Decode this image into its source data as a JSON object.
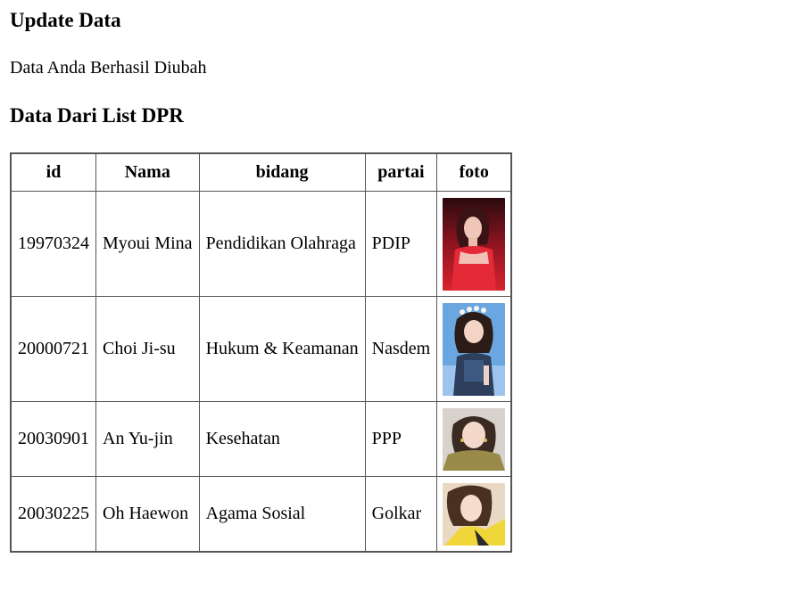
{
  "page": {
    "heading_update": "Update Data",
    "message": "Data Anda Berhasil Diubah",
    "heading_list": "Data Dari List DPR"
  },
  "table": {
    "columns": [
      "id",
      "Nama",
      "bidang",
      "partai",
      "foto"
    ],
    "rows": [
      {
        "id": "19970324",
        "nama": "Myoui Mina",
        "bidang": "Pendidikan Olahraga",
        "partai": "PDIP"
      },
      {
        "id": "20000721",
        "nama": "Choi Ji-su",
        "bidang": "Hukum & Keamanan",
        "partai": "Nasdem"
      },
      {
        "id": "20030901",
        "nama": "An Yu-jin",
        "bidang": "Kesehatan",
        "partai": "PPP"
      },
      {
        "id": "20030225",
        "nama": "Oh Haewon",
        "bidang": "Agama Sosial",
        "partai": "Golkar"
      }
    ]
  }
}
